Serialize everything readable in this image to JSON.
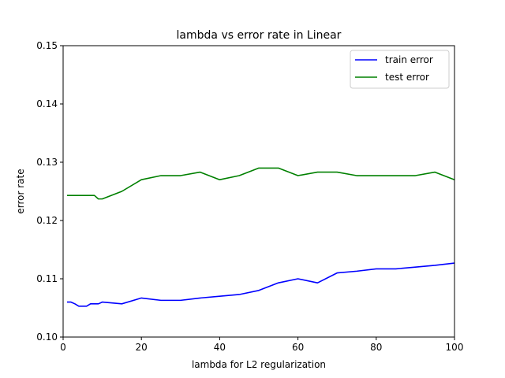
{
  "chart_data": {
    "type": "line",
    "title": "lambda vs error rate in Linear",
    "xlabel": "lambda for L2 regularization",
    "ylabel": "error rate",
    "xlim": [
      0,
      100
    ],
    "ylim": [
      0.1,
      0.15
    ],
    "xticks": [
      0,
      20,
      40,
      60,
      80,
      100
    ],
    "yticks": [
      0.1,
      0.11,
      0.12,
      0.13,
      0.14,
      0.15
    ],
    "xtick_labels": [
      "0",
      "20",
      "40",
      "60",
      "80",
      "100"
    ],
    "ytick_labels": [
      "0.10",
      "0.11",
      "0.12",
      "0.13",
      "0.14",
      "0.15"
    ],
    "grid": false,
    "legend_position": "upper right",
    "series": [
      {
        "name": "train error",
        "color": "#0000ff",
        "x": [
          1,
          2,
          3,
          4,
          5,
          6,
          7,
          8,
          9,
          10,
          15,
          20,
          25,
          30,
          35,
          40,
          45,
          50,
          55,
          60,
          65,
          70,
          75,
          80,
          85,
          90,
          95,
          100
        ],
        "y": [
          0.106,
          0.106,
          0.1057,
          0.1053,
          0.1053,
          0.1053,
          0.1057,
          0.1057,
          0.1057,
          0.106,
          0.1057,
          0.1067,
          0.1063,
          0.1063,
          0.1067,
          0.107,
          0.1073,
          0.108,
          0.1093,
          0.11,
          0.1093,
          0.111,
          0.1113,
          0.1117,
          0.1117,
          0.112,
          0.1123,
          0.1127
        ]
      },
      {
        "name": "test error",
        "color": "#008000",
        "x": [
          1,
          2,
          3,
          4,
          5,
          6,
          7,
          8,
          9,
          10,
          15,
          20,
          25,
          30,
          35,
          40,
          45,
          50,
          55,
          60,
          65,
          70,
          75,
          80,
          85,
          90,
          95,
          100
        ],
        "y": [
          0.1243,
          0.1243,
          0.1243,
          0.1243,
          0.1243,
          0.1243,
          0.1243,
          0.1243,
          0.1237,
          0.1237,
          0.125,
          0.127,
          0.1277,
          0.1277,
          0.1283,
          0.127,
          0.1277,
          0.129,
          0.129,
          0.1277,
          0.1283,
          0.1283,
          0.1277,
          0.1277,
          0.1277,
          0.1277,
          0.1283,
          0.127
        ]
      }
    ]
  }
}
